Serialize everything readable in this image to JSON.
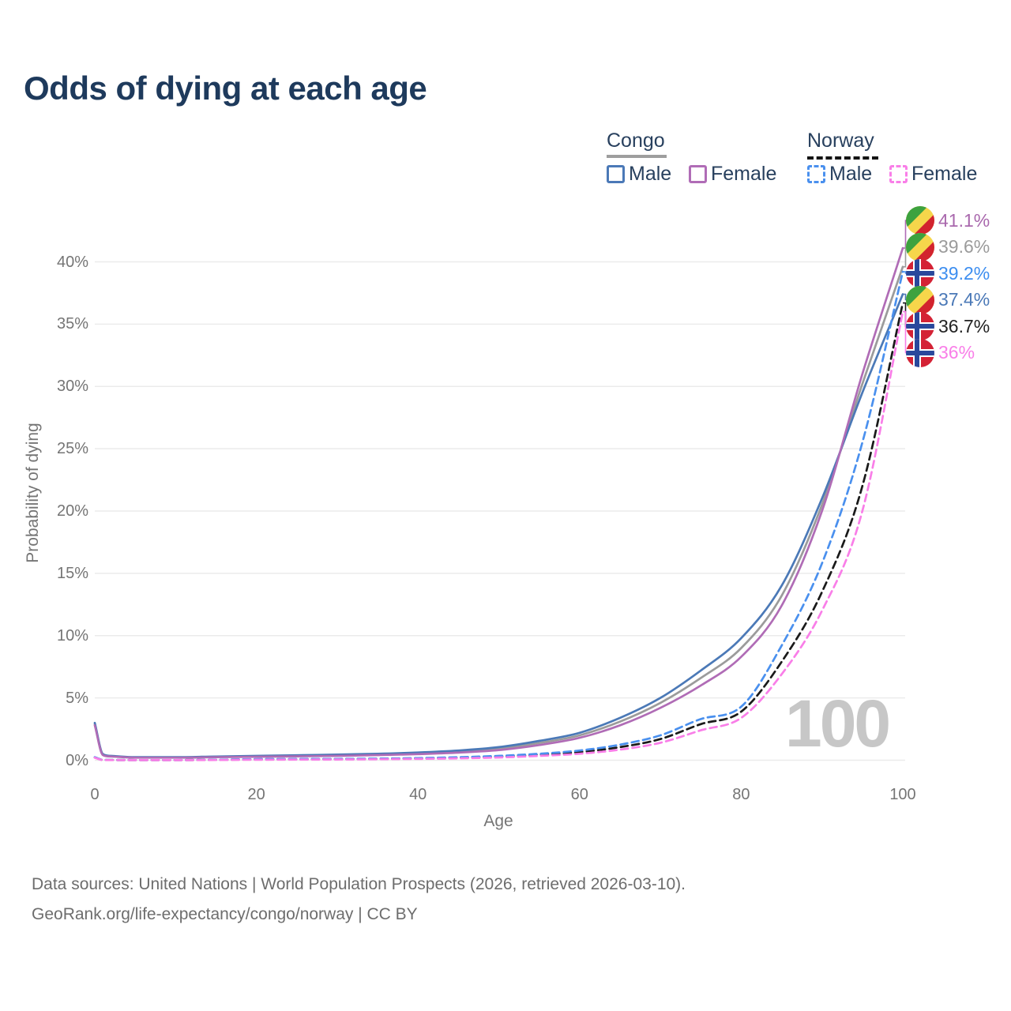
{
  "title": "Odds of dying at each age",
  "watermark_age": "100",
  "legend": {
    "groups": [
      {
        "label": "Congo",
        "line_style": "solid",
        "line_color": "#9e9e9e"
      },
      {
        "label": "Norway",
        "line_style": "dashed",
        "line_color": "#141414"
      }
    ],
    "items": [
      {
        "label": "Male",
        "group": "Congo",
        "color": "#4b79b7",
        "style": "solid"
      },
      {
        "label": "Female",
        "group": "Congo",
        "color": "#b06cb6",
        "style": "solid"
      },
      {
        "label": "Male",
        "group": "Norway",
        "color": "#4a90ee",
        "style": "dashed"
      },
      {
        "label": "Female",
        "group": "Norway",
        "color": "#f97ee8",
        "style": "dashed"
      }
    ]
  },
  "axes": {
    "xlabel": "Age",
    "ylabel": "Probability of dying",
    "xtick_labels": [
      "0",
      "20",
      "40",
      "60",
      "80",
      "100"
    ],
    "ytick_labels": [
      "0%",
      "5%",
      "10%",
      "15%",
      "20%",
      "25%",
      "30%",
      "35%",
      "40%"
    ]
  },
  "end_labels": [
    {
      "value": "41.1%",
      "flag": "congo",
      "series": "congo_female",
      "color": "#a968ad"
    },
    {
      "value": "39.6%",
      "flag": "congo",
      "series": "congo_all",
      "color": "#9b9b9b"
    },
    {
      "value": "39.2%",
      "flag": "norway",
      "series": "norway_male",
      "color": "#3d8ef0"
    },
    {
      "value": "37.4%",
      "flag": "congo",
      "series": "congo_male",
      "color": "#4b79b7"
    },
    {
      "value": "36.7%",
      "flag": "norway",
      "series": "norway_all",
      "color": "#222222"
    },
    {
      "value": "36%",
      "flag": "norway",
      "series": "norway_female",
      "color": "#f97ee8"
    }
  ],
  "chart_data": {
    "type": "line",
    "title": "Odds of dying at each age",
    "xlabel": "Age",
    "ylabel": "Probability of dying",
    "xlim": [
      0,
      100
    ],
    "ylim_percent": [
      0,
      43
    ],
    "xticks": [
      0,
      20,
      40,
      60,
      80,
      100
    ],
    "yticks_percent": [
      0,
      5,
      10,
      15,
      20,
      25,
      30,
      35,
      40
    ],
    "grid": "horizontal",
    "legend_position": "top-right",
    "hover_age_indicator": 100,
    "x_ages": [
      0,
      1,
      2,
      5,
      10,
      15,
      20,
      25,
      30,
      35,
      40,
      45,
      50,
      55,
      60,
      65,
      70,
      75,
      80,
      85,
      90,
      95,
      100
    ],
    "series": [
      {
        "id": "congo_all",
        "name": "Congo — Both sexes",
        "country": "Congo",
        "sex": "Both",
        "color": "#9b9b9b",
        "dash": "solid",
        "end_value_percent": 39.6,
        "values_percent": [
          2.9,
          0.46,
          0.32,
          0.22,
          0.22,
          0.27,
          0.31,
          0.35,
          0.4,
          0.46,
          0.55,
          0.69,
          0.92,
          1.38,
          2.0,
          3.1,
          4.6,
          6.6,
          9.0,
          13.2,
          20.5,
          30.2,
          39.6
        ]
      },
      {
        "id": "congo_male",
        "name": "Congo — Male",
        "country": "Congo",
        "sex": "Male",
        "color": "#4b79b7",
        "dash": "solid",
        "end_value_percent": 37.4,
        "values_percent": [
          3.0,
          0.5,
          0.35,
          0.25,
          0.25,
          0.3,
          0.35,
          0.4,
          0.45,
          0.52,
          0.62,
          0.78,
          1.05,
          1.55,
          2.2,
          3.4,
          5.0,
          7.2,
          9.8,
          14.0,
          21.0,
          29.5,
          37.4
        ]
      },
      {
        "id": "congo_female",
        "name": "Congo — Female",
        "country": "Congo",
        "sex": "Female",
        "color": "#b06cb6",
        "dash": "solid",
        "end_value_percent": 41.1,
        "values_percent": [
          2.8,
          0.42,
          0.3,
          0.2,
          0.2,
          0.24,
          0.28,
          0.31,
          0.35,
          0.41,
          0.49,
          0.61,
          0.81,
          1.22,
          1.8,
          2.8,
          4.2,
          6.0,
          8.3,
          12.4,
          20.0,
          31.0,
          41.1
        ]
      },
      {
        "id": "norway_all",
        "name": "Norway — Both sexes",
        "country": "Norway",
        "sex": "Both",
        "color": "#1a1a1a",
        "dash": "dashed",
        "end_value_percent": 36.7,
        "values_percent": [
          0.22,
          0.025,
          0.018,
          0.01,
          0.01,
          0.03,
          0.07,
          0.08,
          0.09,
          0.11,
          0.15,
          0.2,
          0.3,
          0.45,
          0.66,
          1.05,
          1.7,
          2.9,
          3.9,
          7.9,
          13.5,
          22.0,
          36.7
        ]
      },
      {
        "id": "norway_male",
        "name": "Norway — Male",
        "country": "Norway",
        "sex": "Male",
        "color": "#4a90ee",
        "dash": "dashed",
        "end_value_percent": 39.2,
        "values_percent": [
          0.25,
          0.03,
          0.02,
          0.012,
          0.012,
          0.04,
          0.09,
          0.1,
          0.11,
          0.13,
          0.17,
          0.24,
          0.35,
          0.52,
          0.78,
          1.25,
          2.0,
          3.3,
          4.3,
          9.2,
          15.8,
          25.5,
          39.2
        ]
      },
      {
        "id": "norway_female",
        "name": "Norway — Female",
        "country": "Norway",
        "sex": "Female",
        "color": "#f97ee8",
        "dash": "dashed",
        "end_value_percent": 36.0,
        "values_percent": [
          0.2,
          0.02,
          0.015,
          0.008,
          0.008,
          0.02,
          0.04,
          0.05,
          0.06,
          0.08,
          0.11,
          0.15,
          0.22,
          0.35,
          0.52,
          0.85,
          1.4,
          2.4,
          3.4,
          6.9,
          12.0,
          20.0,
          36.0
        ]
      }
    ]
  },
  "footer": {
    "line1": "Data sources: United Nations | World Population Prospects (2026, retrieved 2026-03-10).",
    "line2": "GeoRank.org/life-expectancy/congo/norway | CC BY"
  }
}
